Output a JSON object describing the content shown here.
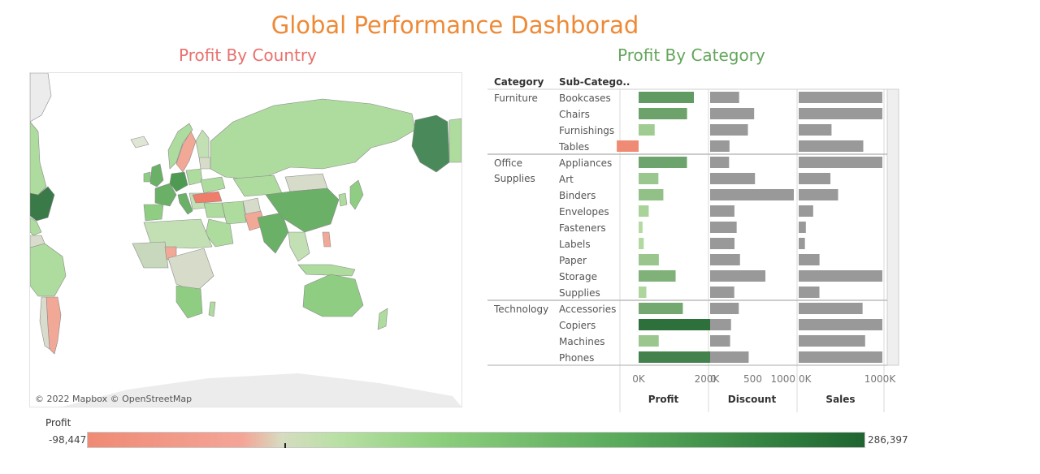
{
  "dashboard": {
    "title": "Global Performance Dashborad",
    "map_title": "Profit By Country",
    "category_title": "Profit By Category",
    "map_attribution": "© 2022 Mapbox © OpenStreetMap"
  },
  "legend": {
    "title": "Profit",
    "min_label": "-98,447",
    "max_label": "286,397",
    "min": -98447,
    "max": 286397
  },
  "colors": {
    "title": "#ee8a37",
    "map_title": "#e8706c",
    "category_title": "#63a65b",
    "negative": "#ef8a74",
    "positive_dark": "#1f6431",
    "positive_light": "#b9e0a5",
    "bar_gray": "#999999"
  },
  "chart_data": {
    "type": "bar",
    "title": "Profit By Category",
    "header_category": "Category",
    "header_subcategory": "Sub-Catego..",
    "panels": [
      {
        "name": "Profit",
        "axis_ticks": [
          "0K",
          "200K"
        ],
        "range": [
          -50000,
          200000
        ]
      },
      {
        "name": "Discount",
        "axis_ticks": [
          "0",
          "500",
          "1000"
        ],
        "range": [
          0,
          1000
        ]
      },
      {
        "name": "Sales",
        "axis_ticks": [
          "0K",
          "1000K"
        ],
        "range": [
          0,
          1000000
        ]
      }
    ],
    "groups": [
      {
        "category": "Furniture",
        "category_lines": [
          "Furniture"
        ],
        "rows": [
          {
            "sub": "Bookcases",
            "profit": 161900,
            "discount": 340,
            "sales": 1466000
          },
          {
            "sub": "Chairs",
            "profit": 141973,
            "discount": 516,
            "sales": 1501000
          },
          {
            "sub": "Furnishings",
            "profit": 46967,
            "discount": 443,
            "sales": 385000
          },
          {
            "sub": "Tables",
            "profit": -64083,
            "discount": 227,
            "sales": 757000
          }
        ]
      },
      {
        "category": "Office Supplies",
        "category_lines": [
          "Office",
          "Supplies"
        ],
        "rows": [
          {
            "sub": "Appliances",
            "profit": 141680,
            "discount": 222,
            "sales": 1011000
          },
          {
            "sub": "Art",
            "profit": 57953,
            "discount": 526,
            "sales": 372000
          },
          {
            "sub": "Binders",
            "profit": 72449,
            "discount": 1019,
            "sales": 462000
          },
          {
            "sub": "Envelopes",
            "profit": 29601,
            "discount": 285,
            "sales": 170000
          },
          {
            "sub": "Fasteners",
            "profit": 11525,
            "discount": 311,
            "sales": 84000
          },
          {
            "sub": "Labels",
            "profit": 15010,
            "discount": 286,
            "sales": 73000
          },
          {
            "sub": "Paper",
            "profit": 59207,
            "discount": 350,
            "sales": 244000
          },
          {
            "sub": "Storage",
            "profit": 108461,
            "discount": 648,
            "sales": 1127000
          },
          {
            "sub": "Supplies",
            "profit": 22583,
            "discount": 283,
            "sales": 243000
          }
        ]
      },
      {
        "category": "Technology",
        "category_lines": [
          "Technology"
        ],
        "rows": [
          {
            "sub": "Accessories",
            "profit": 129626,
            "discount": 336,
            "sales": 749000
          },
          {
            "sub": "Copiers",
            "profit": 258567,
            "discount": 245,
            "sales": 1509000
          },
          {
            "sub": "Machines",
            "profit": 58867,
            "discount": 234,
            "sales": 779000
          },
          {
            "sub": "Phones",
            "profit": 216717,
            "discount": 452,
            "sales": 1706000
          }
        ]
      }
    ]
  }
}
